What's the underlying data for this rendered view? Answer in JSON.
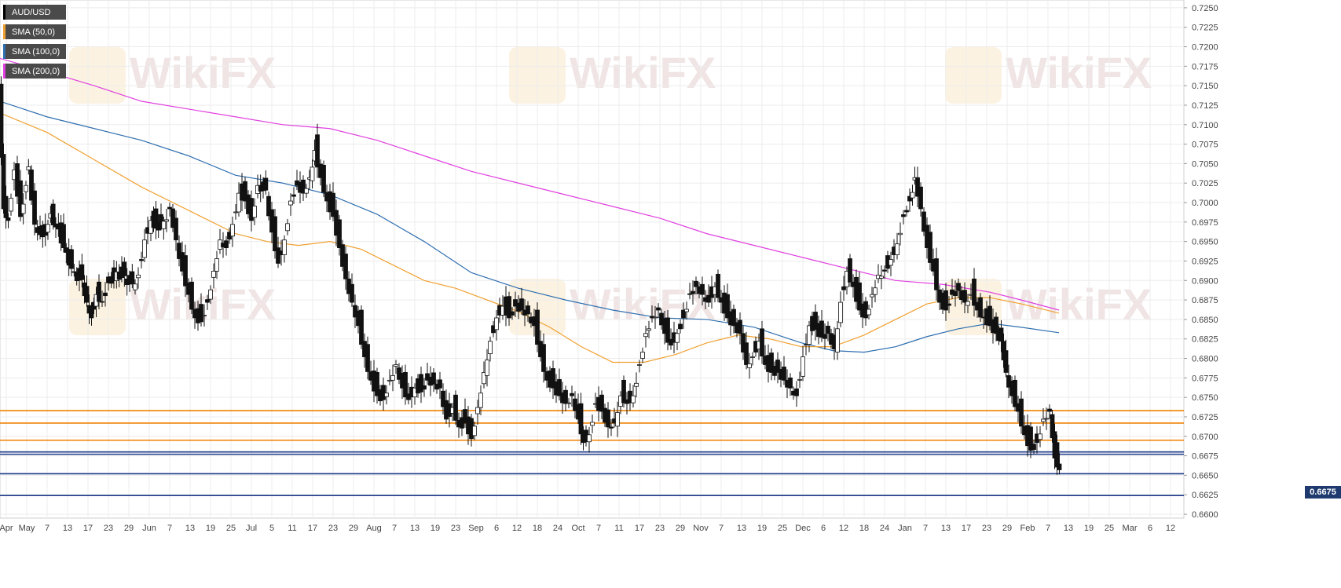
{
  "chart_data": {
    "type": "candlestick",
    "symbol": "AUD/USD",
    "current_price": "0.6675",
    "y_ticks": [
      "0.7250",
      "0.7225",
      "0.7200",
      "0.7175",
      "0.7150",
      "0.7125",
      "0.7100",
      "0.7075",
      "0.7050",
      "0.7025",
      "0.7000",
      "0.6975",
      "0.6950",
      "0.6925",
      "0.6900",
      "0.6875",
      "0.6850",
      "0.6825",
      "0.6800",
      "0.6775",
      "0.6750",
      "0.6725",
      "0.6700",
      "0.6675",
      "0.6650",
      "0.6625",
      "0.6600"
    ],
    "ylim": [
      0.6595,
      0.726
    ],
    "x_ticks": [
      "Apr",
      "May",
      "7",
      "13",
      "17",
      "23",
      "29",
      "Jun",
      "7",
      "13",
      "19",
      "25",
      "Jul",
      "5",
      "11",
      "17",
      "23",
      "29",
      "Aug",
      "7",
      "13",
      "19",
      "23",
      "Sep",
      "6",
      "12",
      "18",
      "24",
      "Oct",
      "7",
      "11",
      "17",
      "23",
      "29",
      "Nov",
      "7",
      "13",
      "19",
      "25",
      "Dec",
      "6",
      "12",
      "18",
      "24",
      "Jan",
      "7",
      "13",
      "17",
      "23",
      "29",
      "Feb",
      "7",
      "13",
      "19",
      "25",
      "Mar",
      "6",
      "12"
    ],
    "legend": [
      {
        "label": "AUD/USD",
        "color": "#000000"
      },
      {
        "label": "SMA (50,0)",
        "color": "#f0a030"
      },
      {
        "label": "SMA (100,0)",
        "color": "#2f6fb0"
      },
      {
        "label": "SMA (200,0)",
        "color": "#e040e0"
      }
    ],
    "horizontal_levels": [
      {
        "value": 0.6733,
        "color": "#f08000"
      },
      {
        "value": 0.6717,
        "color": "#f08000"
      },
      {
        "value": 0.6695,
        "color": "#f08000"
      },
      {
        "value": 0.668,
        "color": "#1e3a8a"
      },
      {
        "value": 0.6677,
        "color": "#1e3a8a"
      },
      {
        "value": 0.6652,
        "color": "#1e3a8a"
      },
      {
        "value": 0.6624,
        "color": "#1e3a8a"
      }
    ],
    "close_path": [
      [
        0,
        0.714
      ],
      [
        6,
        0.7
      ],
      [
        12,
        0.6985
      ],
      [
        20,
        0.705
      ],
      [
        28,
        0.699
      ],
      [
        38,
        0.705
      ],
      [
        46,
        0.698
      ],
      [
        56,
        0.696
      ],
      [
        66,
        0.699
      ],
      [
        76,
        0.697
      ],
      [
        86,
        0.694
      ],
      [
        96,
        0.6915
      ],
      [
        106,
        0.6905
      ],
      [
        112,
        0.688
      ],
      [
        118,
        0.686
      ],
      [
        124,
        0.689
      ],
      [
        132,
        0.688
      ],
      [
        140,
        0.6905
      ],
      [
        150,
        0.6915
      ],
      [
        160,
        0.691
      ],
      [
        170,
        0.69
      ],
      [
        178,
        0.6915
      ],
      [
        186,
        0.696
      ],
      [
        194,
        0.6985
      ],
      [
        200,
        0.6975
      ],
      [
        210,
        0.698
      ],
      [
        218,
        0.7
      ],
      [
        226,
        0.696
      ],
      [
        234,
        0.692
      ],
      [
        242,
        0.689
      ],
      [
        250,
        0.686
      ],
      [
        258,
        0.6855
      ],
      [
        266,
        0.688
      ],
      [
        274,
        0.692
      ],
      [
        282,
        0.696
      ],
      [
        290,
        0.695
      ],
      [
        298,
        0.698
      ],
      [
        306,
        0.702
      ],
      [
        314,
        0.701
      ],
      [
        322,
        0.6985
      ],
      [
        330,
        0.703
      ],
      [
        340,
        0.702
      ],
      [
        348,
        0.697
      ],
      [
        356,
        0.693
      ],
      [
        364,
        0.696
      ],
      [
        372,
        0.701
      ],
      [
        380,
        0.703
      ],
      [
        388,
        0.702
      ],
      [
        396,
        0.704
      ],
      [
        402,
        0.7075
      ],
      [
        410,
        0.704
      ],
      [
        418,
        0.701
      ],
      [
        426,
        0.699
      ],
      [
        434,
        0.695
      ],
      [
        442,
        0.691
      ],
      [
        450,
        0.688
      ],
      [
        458,
        0.685
      ],
      [
        466,
        0.681
      ],
      [
        474,
        0.678
      ],
      [
        482,
        0.676
      ],
      [
        490,
        0.6755
      ],
      [
        498,
        0.678
      ],
      [
        506,
        0.68
      ],
      [
        514,
        0.677
      ],
      [
        522,
        0.6755
      ],
      [
        530,
        0.677
      ],
      [
        538,
        0.6765
      ],
      [
        546,
        0.678
      ],
      [
        554,
        0.6775
      ],
      [
        562,
        0.677
      ],
      [
        570,
        0.673
      ],
      [
        578,
        0.6745
      ],
      [
        586,
        0.672
      ],
      [
        594,
        0.6725
      ],
      [
        602,
        0.6705
      ],
      [
        610,
        0.6745
      ],
      [
        618,
        0.679
      ],
      [
        626,
        0.683
      ],
      [
        634,
        0.686
      ],
      [
        642,
        0.6875
      ],
      [
        650,
        0.686
      ],
      [
        658,
        0.6875
      ],
      [
        666,
        0.687
      ],
      [
        674,
        0.6865
      ],
      [
        682,
        0.685
      ],
      [
        690,
        0.681
      ],
      [
        698,
        0.678
      ],
      [
        706,
        0.677
      ],
      [
        714,
        0.676
      ],
      [
        722,
        0.675
      ],
      [
        730,
        0.676
      ],
      [
        738,
        0.673
      ],
      [
        744,
        0.67
      ],
      [
        752,
        0.671
      ],
      [
        760,
        0.675
      ],
      [
        768,
        0.674
      ],
      [
        776,
        0.672
      ],
      [
        784,
        0.6725
      ],
      [
        792,
        0.676
      ],
      [
        800,
        0.675
      ],
      [
        808,
        0.676
      ],
      [
        816,
        0.68
      ],
      [
        824,
        0.684
      ],
      [
        832,
        0.686
      ],
      [
        840,
        0.687
      ],
      [
        848,
        0.684
      ],
      [
        856,
        0.6825
      ],
      [
        864,
        0.684
      ],
      [
        872,
        0.686
      ],
      [
        880,
        0.689
      ],
      [
        888,
        0.69
      ],
      [
        896,
        0.689
      ],
      [
        904,
        0.688
      ],
      [
        912,
        0.69
      ],
      [
        920,
        0.688
      ],
      [
        928,
        0.686
      ],
      [
        936,
        0.685
      ],
      [
        944,
        0.684
      ],
      [
        952,
        0.68
      ],
      [
        960,
        0.681
      ],
      [
        968,
        0.683
      ],
      [
        976,
        0.68
      ],
      [
        984,
        0.679
      ],
      [
        992,
        0.679
      ],
      [
        1000,
        0.678
      ],
      [
        1008,
        0.677
      ],
      [
        1016,
        0.676
      ],
      [
        1024,
        0.681
      ],
      [
        1032,
        0.685
      ],
      [
        1040,
        0.6845
      ],
      [
        1048,
        0.6835
      ],
      [
        1056,
        0.684
      ],
      [
        1064,
        0.682
      ],
      [
        1072,
        0.688
      ],
      [
        1080,
        0.692
      ],
      [
        1088,
        0.69
      ],
      [
        1096,
        0.687
      ],
      [
        1104,
        0.686
      ],
      [
        1112,
        0.689
      ],
      [
        1120,
        0.6915
      ],
      [
        1128,
        0.692
      ],
      [
        1136,
        0.6935
      ],
      [
        1144,
        0.6955
      ],
      [
        1152,
        0.699
      ],
      [
        1160,
        0.701
      ],
      [
        1166,
        0.704
      ],
      [
        1174,
        0.7
      ],
      [
        1182,
        0.695
      ],
      [
        1190,
        0.692
      ],
      [
        1198,
        0.688
      ],
      [
        1206,
        0.687
      ],
      [
        1214,
        0.689
      ],
      [
        1222,
        0.6895
      ],
      [
        1230,
        0.688
      ],
      [
        1238,
        0.689
      ],
      [
        1246,
        0.687
      ],
      [
        1254,
        0.686
      ],
      [
        1262,
        0.685
      ],
      [
        1270,
        0.684
      ],
      [
        1276,
        0.683
      ],
      [
        1282,
        0.679
      ],
      [
        1290,
        0.676
      ],
      [
        1298,
        0.674
      ],
      [
        1306,
        0.671
      ],
      [
        1314,
        0.669
      ],
      [
        1322,
        0.67
      ],
      [
        1330,
        0.673
      ],
      [
        1338,
        0.674
      ],
      [
        1344,
        0.668
      ],
      [
        1350,
        0.6665
      ]
    ],
    "sma_50": [
      [
        0,
        0.7115
      ],
      [
        60,
        0.709
      ],
      [
        120,
        0.7055
      ],
      [
        180,
        0.702
      ],
      [
        240,
        0.699
      ],
      [
        300,
        0.696
      ],
      [
        340,
        0.695
      ],
      [
        380,
        0.6945
      ],
      [
        420,
        0.695
      ],
      [
        460,
        0.694
      ],
      [
        500,
        0.692
      ],
      [
        540,
        0.69
      ],
      [
        580,
        0.689
      ],
      [
        620,
        0.6875
      ],
      [
        660,
        0.686
      ],
      [
        700,
        0.684
      ],
      [
        740,
        0.6815
      ],
      [
        780,
        0.6795
      ],
      [
        820,
        0.6795
      ],
      [
        860,
        0.6805
      ],
      [
        900,
        0.682
      ],
      [
        940,
        0.683
      ],
      [
        980,
        0.6825
      ],
      [
        1020,
        0.6815
      ],
      [
        1060,
        0.6815
      ],
      [
        1100,
        0.683
      ],
      [
        1140,
        0.685
      ],
      [
        1180,
        0.687
      ],
      [
        1220,
        0.6878
      ],
      [
        1260,
        0.6878
      ],
      [
        1300,
        0.687
      ],
      [
        1348,
        0.6858
      ]
    ],
    "sma_100": [
      [
        0,
        0.713
      ],
      [
        60,
        0.711
      ],
      [
        120,
        0.7095
      ],
      [
        180,
        0.708
      ],
      [
        240,
        0.706
      ],
      [
        300,
        0.7035
      ],
      [
        360,
        0.7025
      ],
      [
        420,
        0.701
      ],
      [
        480,
        0.6985
      ],
      [
        540,
        0.695
      ],
      [
        600,
        0.691
      ],
      [
        660,
        0.689
      ],
      [
        720,
        0.6875
      ],
      [
        780,
        0.6862
      ],
      [
        840,
        0.6852
      ],
      [
        900,
        0.685
      ],
      [
        960,
        0.684
      ],
      [
        1020,
        0.682
      ],
      [
        1060,
        0.681
      ],
      [
        1100,
        0.6808
      ],
      [
        1140,
        0.6815
      ],
      [
        1180,
        0.6828
      ],
      [
        1220,
        0.6838
      ],
      [
        1260,
        0.6845
      ],
      [
        1300,
        0.684
      ],
      [
        1348,
        0.6833
      ]
    ],
    "sma_200": [
      [
        0,
        0.7185
      ],
      [
        60,
        0.7168
      ],
      [
        120,
        0.715
      ],
      [
        180,
        0.713
      ],
      [
        240,
        0.712
      ],
      [
        300,
        0.711
      ],
      [
        360,
        0.71
      ],
      [
        420,
        0.7095
      ],
      [
        480,
        0.708
      ],
      [
        540,
        0.706
      ],
      [
        600,
        0.704
      ],
      [
        660,
        0.7025
      ],
      [
        720,
        0.701
      ],
      [
        780,
        0.6995
      ],
      [
        840,
        0.698
      ],
      [
        900,
        0.696
      ],
      [
        960,
        0.6945
      ],
      [
        1020,
        0.693
      ],
      [
        1080,
        0.6915
      ],
      [
        1140,
        0.69
      ],
      [
        1200,
        0.6895
      ],
      [
        1260,
        0.6885
      ],
      [
        1300,
        0.6875
      ],
      [
        1348,
        0.6862
      ]
    ]
  }
}
